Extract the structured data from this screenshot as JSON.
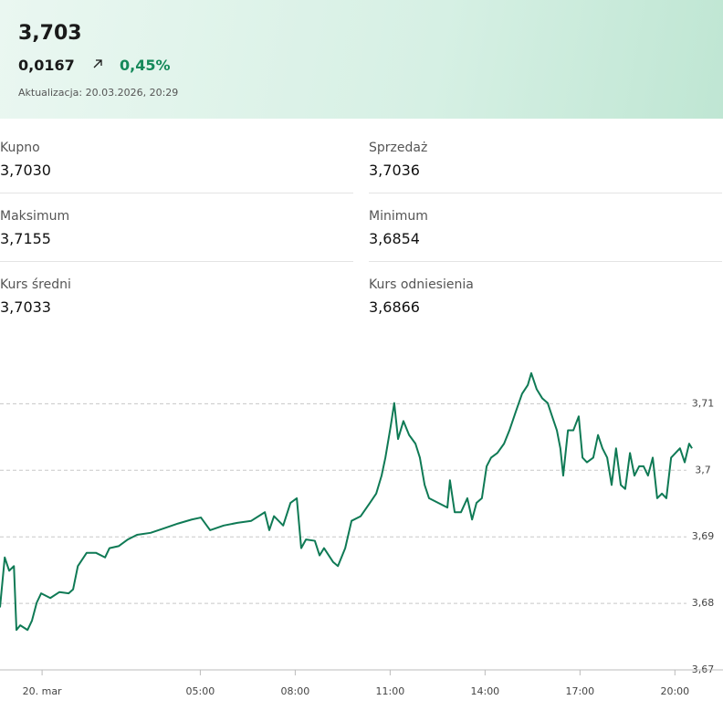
{
  "header": {
    "rate": "3,703",
    "change": "0,0167",
    "change_pct": "0,45%",
    "updated": "Aktualizacja: 20.03.2026, 20:29"
  },
  "stats": [
    {
      "label": "Kupno",
      "value": "3,7030"
    },
    {
      "label": "Sprzedaż",
      "value": "3,7036"
    },
    {
      "label": "Maksimum",
      "value": "3,7155"
    },
    {
      "label": "Minimum",
      "value": "3,6854"
    },
    {
      "label": "Kurs średni",
      "value": "3,7033"
    },
    {
      "label": "Kurs odniesienia",
      "value": "3,6866"
    }
  ],
  "chart_data": {
    "type": "line",
    "color": "#0f7a55",
    "grid": true,
    "xlim": [
      -1.33,
      21.52
    ],
    "ylim": [
      3.67,
      3.7165
    ],
    "xticks": [
      {
        "value": 0,
        "label": "20. mar"
      },
      {
        "value": 5,
        "label": "05:00"
      },
      {
        "value": 8,
        "label": "08:00"
      },
      {
        "value": 11,
        "label": "11:00"
      },
      {
        "value": 14,
        "label": "14:00"
      },
      {
        "value": 17,
        "label": "17:00"
      },
      {
        "value": 20,
        "label": "20:00"
      }
    ],
    "yticks": [
      {
        "value": 3.67,
        "label": "3,67"
      },
      {
        "value": 3.68,
        "label": "3,68"
      },
      {
        "value": 3.69,
        "label": "3,69"
      },
      {
        "value": 3.7,
        "label": "3,7"
      },
      {
        "value": 3.71,
        "label": "3,71"
      }
    ],
    "x": [
      -1.33,
      -1.18,
      -1.04,
      -0.89,
      -0.81,
      -0.69,
      -0.46,
      -0.32,
      -0.17,
      -0.03,
      0.26,
      0.55,
      0.84,
      0.98,
      1.13,
      1.41,
      1.7,
      1.99,
      2.13,
      2.42,
      2.71,
      3.0,
      3.43,
      3.87,
      4.3,
      4.73,
      5.02,
      5.31,
      5.74,
      6.17,
      6.61,
      7.04,
      7.18,
      7.33,
      7.62,
      7.85,
      8.05,
      8.19,
      8.34,
      8.62,
      8.77,
      8.91,
      9.2,
      9.35,
      9.58,
      9.78,
      10.07,
      10.36,
      10.56,
      10.73,
      10.85,
      11.02,
      11.13,
      11.25,
      11.42,
      11.6,
      11.8,
      11.94,
      12.09,
      12.23,
      12.52,
      12.81,
      12.89,
      13.04,
      13.24,
      13.44,
      13.59,
      13.73,
      13.9,
      14.05,
      14.19,
      14.39,
      14.6,
      14.77,
      14.97,
      15.17,
      15.35,
      15.46,
      15.63,
      15.81,
      15.98,
      16.12,
      16.27,
      16.38,
      16.47,
      16.62,
      16.79,
      16.96,
      17.08,
      17.22,
      17.42,
      17.57,
      17.71,
      17.86,
      18.0,
      18.14,
      18.29,
      18.43,
      18.58,
      18.72,
      18.87,
      19.01,
      19.15,
      19.3,
      19.44,
      19.59,
      19.73,
      19.88,
      20.02,
      20.16,
      20.31,
      20.45,
      20.54
    ],
    "values": [
      3.6794,
      3.6869,
      3.6849,
      3.6856,
      3.676,
      3.6767,
      3.676,
      3.6774,
      3.6801,
      3.6815,
      3.6808,
      3.6817,
      3.6815,
      3.6821,
      3.6856,
      3.6876,
      3.6876,
      3.6869,
      3.6883,
      3.6886,
      3.6896,
      3.6903,
      3.6906,
      3.6913,
      3.692,
      3.6926,
      3.6929,
      3.691,
      3.6917,
      3.6921,
      3.6924,
      3.6937,
      3.691,
      3.6931,
      3.6917,
      3.6951,
      3.6958,
      3.6883,
      3.6896,
      3.6894,
      3.6872,
      3.6883,
      3.6862,
      3.6856,
      3.6883,
      3.6924,
      3.6931,
      3.6951,
      3.6965,
      3.6992,
      3.7019,
      3.7067,
      3.7101,
      3.7047,
      3.7074,
      3.7053,
      3.704,
      3.7019,
      3.6978,
      3.6958,
      3.6951,
      3.6944,
      3.6985,
      3.6937,
      3.6937,
      3.6958,
      3.6926,
      3.6951,
      3.6958,
      3.7006,
      3.7019,
      3.7026,
      3.704,
      3.706,
      3.7088,
      3.7115,
      3.7128,
      3.7146,
      3.7122,
      3.7108,
      3.7101,
      3.7081,
      3.706,
      3.7033,
      3.6992,
      3.706,
      3.706,
      3.7081,
      3.7019,
      3.7012,
      3.7019,
      3.7053,
      3.7033,
      3.7019,
      3.6978,
      3.7033,
      3.6978,
      3.6972,
      3.7026,
      3.6992,
      3.7006,
      3.7006,
      3.6992,
      3.7019,
      3.6958,
      3.6965,
      3.6958,
      3.7019,
      3.7026,
      3.7033,
      3.7012,
      3.704,
      3.7033
    ]
  }
}
